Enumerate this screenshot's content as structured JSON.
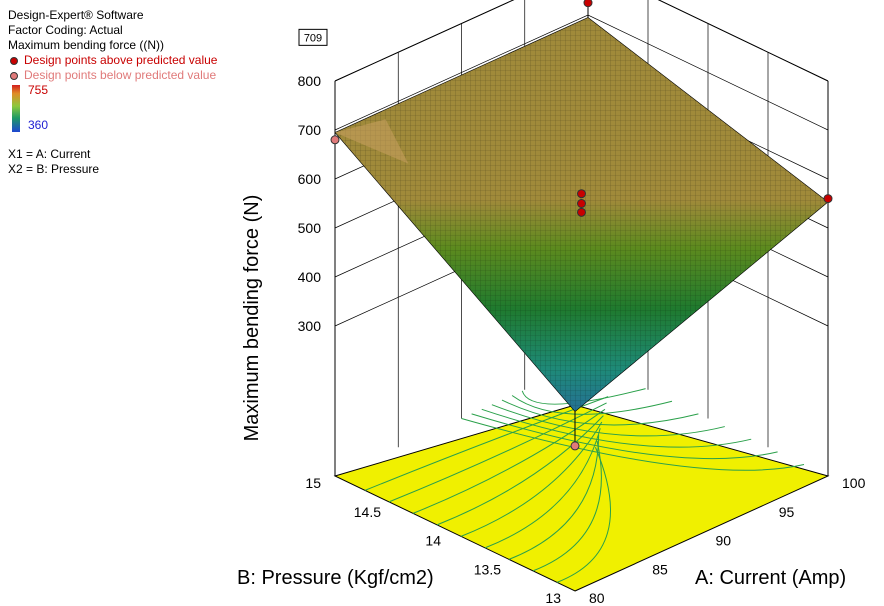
{
  "legend": {
    "software": "Design-Expert® Software",
    "coding": "Factor Coding: Actual",
    "response": "Maximum bending force ((N))",
    "above_label": "Design points above predicted value",
    "below_label": "Design points below predicted value",
    "scale_max": "755",
    "scale_min": "360",
    "x1": "X1 = A: Current",
    "x2": "X2 = B: Pressure"
  },
  "chart_data": {
    "type": "surface",
    "zlabel": "Maximum bending force (N)",
    "xlabel": "A: Current (Amp)",
    "ylabel": "B: Pressure (Kgf/cm2)",
    "x_ticks": [
      "80",
      "85",
      "90",
      "95",
      "100"
    ],
    "y_ticks": [
      "13",
      "13.5",
      "14",
      "14.5",
      "15"
    ],
    "z_ticks": [
      "300",
      "400",
      "500",
      "600",
      "700",
      "800"
    ],
    "xlim": [
      80,
      100
    ],
    "ylim": [
      13,
      15
    ],
    "zlim": [
      300,
      800
    ],
    "z_callout": "709",
    "surface_corners": [
      {
        "current": 80,
        "pressure": 13,
        "force": 360
      },
      {
        "current": 100,
        "pressure": 13,
        "force": 553
      },
      {
        "current": 80,
        "pressure": 15,
        "force": 695
      },
      {
        "current": 100,
        "pressure": 15,
        "force": 695
      }
    ],
    "design_points": [
      {
        "current": 80,
        "pressure": 13,
        "force": 290,
        "position": "below"
      },
      {
        "current": 80,
        "pressure": 15,
        "force": 680,
        "position": "below"
      },
      {
        "current": 100,
        "pressure": 13,
        "force": 560,
        "position": "above"
      },
      {
        "current": 100,
        "pressure": 15,
        "force": 725,
        "position": "above"
      },
      {
        "current": 90,
        "pressure": 14,
        "force": 570,
        "position": "above"
      },
      {
        "current": 90,
        "pressure": 14,
        "force": 550,
        "position": "above"
      },
      {
        "current": 90,
        "pressure": 14,
        "force": 532,
        "position": "above"
      }
    ],
    "colors": {
      "contour_floor": "#f0f000",
      "contour_lines": "#2aa04a",
      "point_above": "#c80000",
      "point_below": "#e07a7a"
    }
  }
}
